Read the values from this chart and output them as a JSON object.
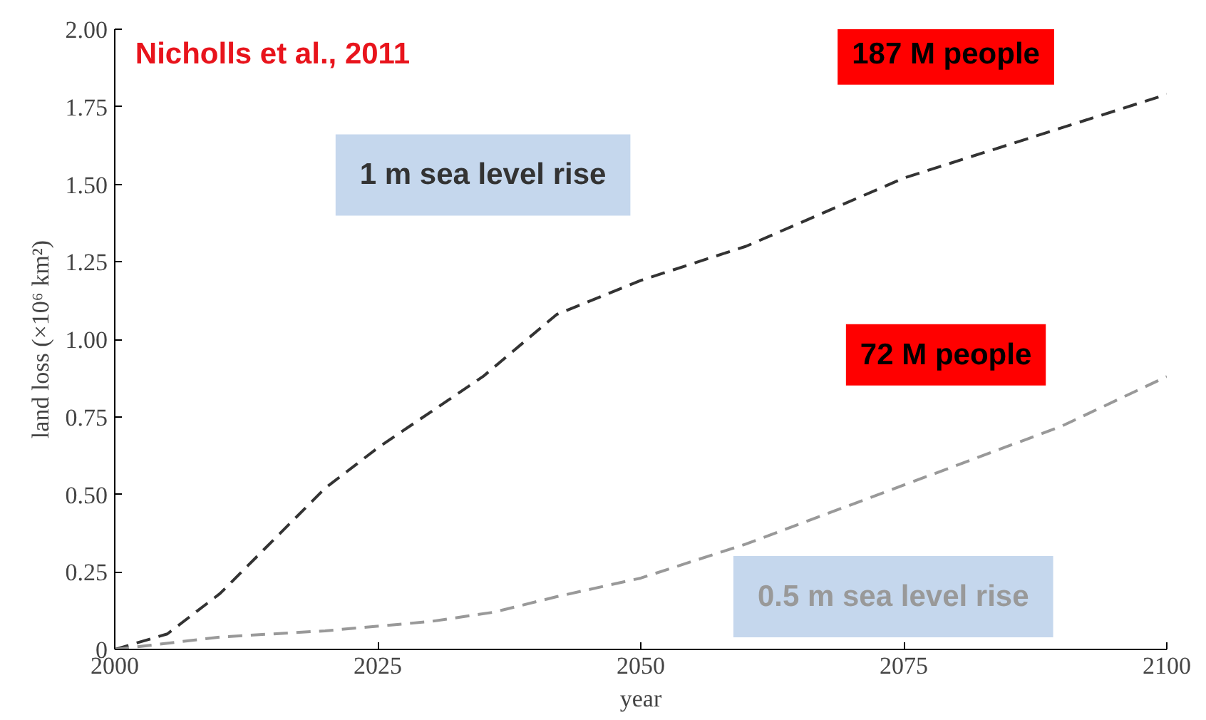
{
  "chart_data": {
    "type": "line",
    "xlabel": "year",
    "ylabel": "land loss (×10⁶ km²)",
    "xlim": [
      2000,
      2100
    ],
    "ylim": [
      0,
      2
    ],
    "xticks": [
      2000,
      2025,
      2050,
      2075,
      2100
    ],
    "yticks": [
      0,
      0.25,
      {
        "value": 0.5,
        "label": "0.50"
      },
      0.75,
      {
        "value": 1,
        "label": "1.00"
      },
      1.25,
      {
        "value": 1.5,
        "label": "1.50"
      },
      1.75,
      {
        "value": 2,
        "label": "2.00"
      }
    ],
    "series": [
      {
        "name": "1 m sea level rise",
        "color": "#333333",
        "x": [
          2000,
          2005,
          2010,
          2020,
          2025,
          2035,
          2042,
          2050,
          2060,
          2075,
          2100
        ],
        "values": [
          0,
          0.05,
          0.18,
          0.52,
          0.65,
          0.88,
          1.08,
          1.19,
          1.3,
          1.52,
          1.79
        ]
      },
      {
        "name": "0.5 m sea level rise",
        "color": "#999999",
        "x": [
          2000,
          2010,
          2020,
          2030,
          2036,
          2042,
          2050,
          2060,
          2075,
          2090,
          2100
        ],
        "values": [
          0,
          0.04,
          0.06,
          0.09,
          0.12,
          0.17,
          0.23,
          0.34,
          0.53,
          0.72,
          0.88
        ]
      }
    ],
    "annotations": [
      "Nicholls et al., 2011",
      "187 M people",
      "72 M people"
    ],
    "line_style": "dashed",
    "grid": false
  }
}
